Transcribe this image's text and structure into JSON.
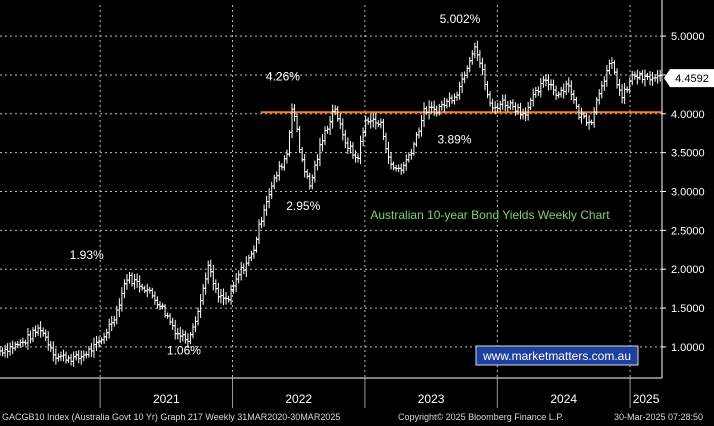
{
  "chart_data": {
    "type": "bar",
    "style": "ohlc-weekly",
    "title": "Australian 10-year Bond Yields Weekly Chart",
    "x_ticks": [
      "2021",
      "2022",
      "2023",
      "2024",
      "2025"
    ],
    "y_ticks": [
      "1.0000",
      "1.5000",
      "2.0000",
      "2.5000",
      "3.0000",
      "3.5000",
      "4.0000",
      "4.5000",
      "5.0000"
    ],
    "ylim": [
      0.6,
      5.4
    ],
    "xlim": [
      "2020-03-31",
      "2025-03-30"
    ],
    "last_price": 4.4592,
    "last_price_label": "4.4592",
    "reference_line": {
      "value": 4.02,
      "color": "#ff7a1a"
    },
    "anchors": [
      [
        "2020-03-31",
        0.95
      ],
      [
        "2020-06-01",
        1.05
      ],
      [
        "2020-07-20",
        1.25
      ],
      [
        "2020-09-01",
        0.88
      ],
      [
        "2020-11-01",
        0.85
      ],
      [
        "2021-01-01",
        1.05
      ],
      [
        "2021-02-15",
        1.45
      ],
      [
        "2021-03-15",
        1.9
      ],
      [
        "2021-05-01",
        1.78
      ],
      [
        "2021-06-15",
        1.55
      ],
      [
        "2021-08-01",
        1.18
      ],
      [
        "2021-08-30",
        1.1
      ],
      [
        "2021-10-01",
        1.5
      ],
      [
        "2021-10-25",
        2.05
      ],
      [
        "2021-11-20",
        1.65
      ],
      [
        "2021-12-20",
        1.6
      ],
      [
        "2022-01-20",
        1.95
      ],
      [
        "2022-02-25",
        2.2
      ],
      [
        "2022-04-01",
        2.85
      ],
      [
        "2022-05-01",
        3.2
      ],
      [
        "2022-06-01",
        3.5
      ],
      [
        "2022-06-15",
        4.15
      ],
      [
        "2022-07-05",
        3.55
      ],
      [
        "2022-08-01",
        3.05
      ],
      [
        "2022-09-01",
        3.6
      ],
      [
        "2022-10-10",
        4.1
      ],
      [
        "2022-11-01",
        3.7
      ],
      [
        "2022-12-10",
        3.4
      ],
      [
        "2023-01-05",
        3.95
      ],
      [
        "2023-02-15",
        3.85
      ],
      [
        "2023-03-15",
        3.3
      ],
      [
        "2023-04-15",
        3.3
      ],
      [
        "2023-05-15",
        3.6
      ],
      [
        "2023-06-15",
        4.05
      ],
      [
        "2023-07-15",
        4.05
      ],
      [
        "2023-08-15",
        4.15
      ],
      [
        "2023-09-15",
        4.3
      ],
      [
        "2023-10-31",
        4.9
      ],
      [
        "2023-11-20",
        4.55
      ],
      [
        "2023-12-15",
        4.05
      ],
      [
        "2024-01-15",
        4.15
      ],
      [
        "2024-02-15",
        4.1
      ],
      [
        "2024-03-15",
        4.0
      ],
      [
        "2024-04-15",
        4.25
      ],
      [
        "2024-05-15",
        4.45
      ],
      [
        "2024-06-15",
        4.25
      ],
      [
        "2024-07-15",
        4.4
      ],
      [
        "2024-08-10",
        4.0
      ],
      [
        "2024-09-15",
        3.9
      ],
      [
        "2024-10-15",
        4.4
      ],
      [
        "2024-11-10",
        4.65
      ],
      [
        "2024-12-10",
        4.2
      ],
      [
        "2025-01-10",
        4.5
      ],
      [
        "2025-02-10",
        4.45
      ],
      [
        "2025-03-30",
        4.46
      ]
    ],
    "annotations": [
      {
        "text": "1.93%",
        "x": "2020-11-25",
        "y": 2.13
      },
      {
        "text": "1.06%",
        "x": "2021-08-20",
        "y": 0.9
      },
      {
        "text": "4.26%",
        "x": "2022-05-20",
        "y": 4.43
      },
      {
        "text": "2.95%",
        "x": "2022-07-15",
        "y": 2.76
      },
      {
        "text": "5.002%",
        "x": "2023-09-20",
        "y": 5.17
      },
      {
        "text": "3.89%",
        "x": "2023-09-05",
        "y": 3.62
      }
    ],
    "watermark": "www.marketmatters.com.au",
    "colors": {
      "background": "#000000",
      "bars": "#ffffff",
      "grid": "#bdbdbd",
      "reference": "#ff7a1a",
      "title": "#7cd46a",
      "watermark_bg": "#1f3f9f"
    }
  },
  "footer": {
    "left": "GACGB10 Index (Australia Govt 10 Yr) Graph 217  Weekly 31MAR2020-30MAR2025",
    "center": "Copyright© 2025 Bloomberg Finance L.P.",
    "right": "30-Mar-2025 07:28:50"
  }
}
